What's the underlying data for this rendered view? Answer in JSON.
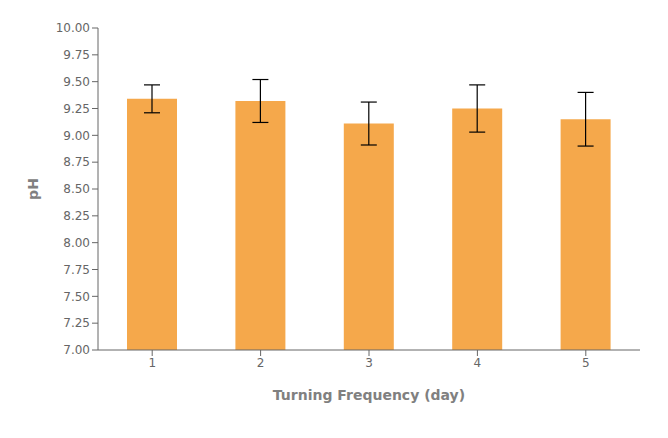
{
  "chart_data": {
    "type": "bar",
    "categories": [
      "1",
      "2",
      "3",
      "4",
      "5"
    ],
    "values": [
      9.34,
      9.32,
      9.11,
      9.25,
      9.15
    ],
    "errors": [
      0.13,
      0.2,
      0.2,
      0.22,
      0.25
    ],
    "color": "#F5A84B",
    "xlabel": "Turning Frequency (day)",
    "ylabel": "pH",
    "ylim": [
      7.0,
      10.0
    ],
    "yticks": [
      {
        "value": 7,
        "label": "7.00"
      },
      7.25,
      {
        "value": 7.5,
        "label": "7.50"
      },
      7.75,
      {
        "value": 8,
        "label": "8.00"
      },
      8.25,
      {
        "value": 8.5,
        "label": "8.50"
      },
      8.75,
      {
        "value": 9,
        "label": "9.00"
      },
      9.25,
      {
        "value": 9.5,
        "label": "9.50"
      },
      9.75,
      {
        "value": 10,
        "label": "10.00"
      }
    ],
    "grid": false
  }
}
